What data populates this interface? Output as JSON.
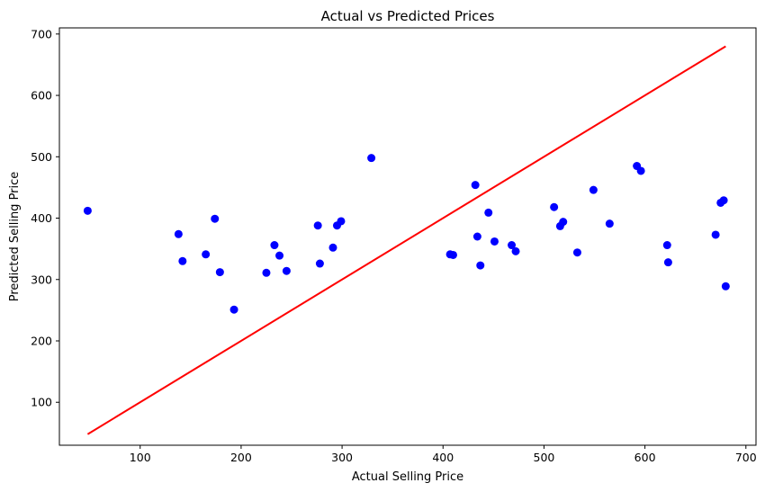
{
  "chart_data": {
    "type": "scatter",
    "title": "Actual vs Predicted Prices",
    "xlabel": "Actual Selling Price",
    "ylabel": "Predicted Selling Price",
    "xlim": [
      20,
      710
    ],
    "ylim": [
      30,
      710
    ],
    "xticks": [
      100,
      200,
      300,
      400,
      500,
      600,
      700
    ],
    "yticks": [
      100,
      200,
      300,
      400,
      500,
      600,
      700
    ],
    "grid": false,
    "point_color": "#0000ff",
    "line_color": "#ff0000",
    "reference_line": {
      "x": [
        48,
        680
      ],
      "y": [
        48,
        680
      ]
    },
    "points": [
      {
        "x": 48,
        "y": 412
      },
      {
        "x": 138,
        "y": 374
      },
      {
        "x": 142,
        "y": 330
      },
      {
        "x": 165,
        "y": 341
      },
      {
        "x": 174,
        "y": 399
      },
      {
        "x": 179,
        "y": 312
      },
      {
        "x": 193,
        "y": 251
      },
      {
        "x": 225,
        "y": 311
      },
      {
        "x": 233,
        "y": 356
      },
      {
        "x": 238,
        "y": 339
      },
      {
        "x": 245,
        "y": 314
      },
      {
        "x": 276,
        "y": 388
      },
      {
        "x": 278,
        "y": 326
      },
      {
        "x": 291,
        "y": 352
      },
      {
        "x": 295,
        "y": 388
      },
      {
        "x": 299,
        "y": 395
      },
      {
        "x": 329,
        "y": 498
      },
      {
        "x": 407,
        "y": 341
      },
      {
        "x": 410,
        "y": 340
      },
      {
        "x": 432,
        "y": 454
      },
      {
        "x": 434,
        "y": 370
      },
      {
        "x": 437,
        "y": 323
      },
      {
        "x": 445,
        "y": 409
      },
      {
        "x": 451,
        "y": 362
      },
      {
        "x": 468,
        "y": 356
      },
      {
        "x": 472,
        "y": 346
      },
      {
        "x": 510,
        "y": 418
      },
      {
        "x": 516,
        "y": 387
      },
      {
        "x": 519,
        "y": 394
      },
      {
        "x": 533,
        "y": 344
      },
      {
        "x": 549,
        "y": 446
      },
      {
        "x": 565,
        "y": 391
      },
      {
        "x": 592,
        "y": 485
      },
      {
        "x": 596,
        "y": 477
      },
      {
        "x": 622,
        "y": 356
      },
      {
        "x": 623,
        "y": 328
      },
      {
        "x": 670,
        "y": 373
      },
      {
        "x": 675,
        "y": 425
      },
      {
        "x": 678,
        "y": 429
      },
      {
        "x": 680,
        "y": 289
      }
    ]
  }
}
